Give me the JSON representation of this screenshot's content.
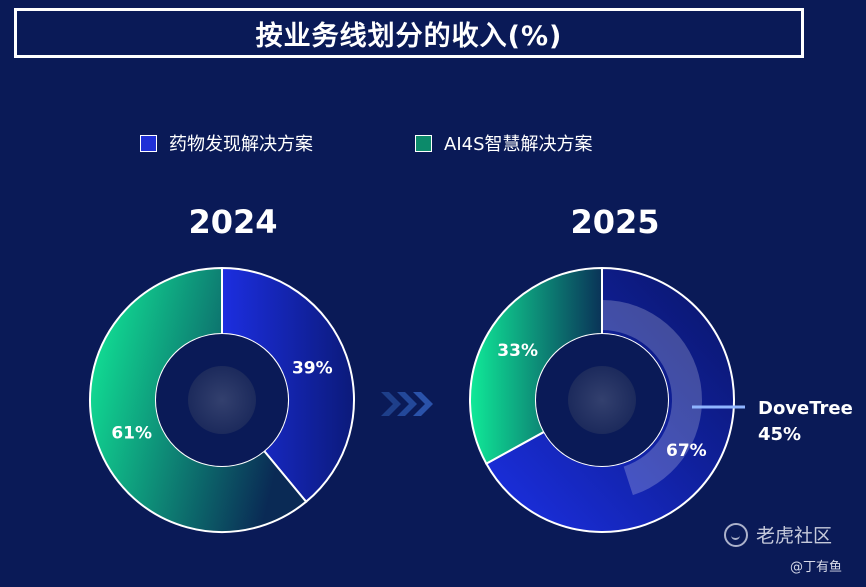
{
  "title": "按业务线划分的收入(%)",
  "legend": [
    {
      "label": "药物发现解决方案",
      "color": "#1f2fd6"
    },
    {
      "label": "AI4S智慧解决方案",
      "color": "#0c8a6a"
    }
  ],
  "chart_data": [
    {
      "type": "pie",
      "title": "2024",
      "slices": [
        {
          "name": "药物发现解决方案",
          "value": 39,
          "label": "39%"
        },
        {
          "name": "AI4S智慧解决方案",
          "value": 61,
          "label": "61%"
        }
      ]
    },
    {
      "type": "pie",
      "title": "2025",
      "slices": [
        {
          "name": "药物发现解决方案",
          "value": 67,
          "label": "67%"
        },
        {
          "name": "AI4S智慧解决方案",
          "value": 33,
          "label": "33%"
        }
      ],
      "highlight": {
        "name": "DoveTree",
        "value": 45,
        "label": "45%"
      }
    }
  ],
  "colors": {
    "background": "#0a1a57",
    "drug_gradient": [
      "#1c2ee0",
      "#0b1a7a"
    ],
    "ai4s_gradient": [
      "#12f09a",
      "#0a2a55"
    ],
    "arrow": "#1e3f8a"
  },
  "watermark": {
    "brand": "老虎社区",
    "author": "@丁有鱼"
  }
}
